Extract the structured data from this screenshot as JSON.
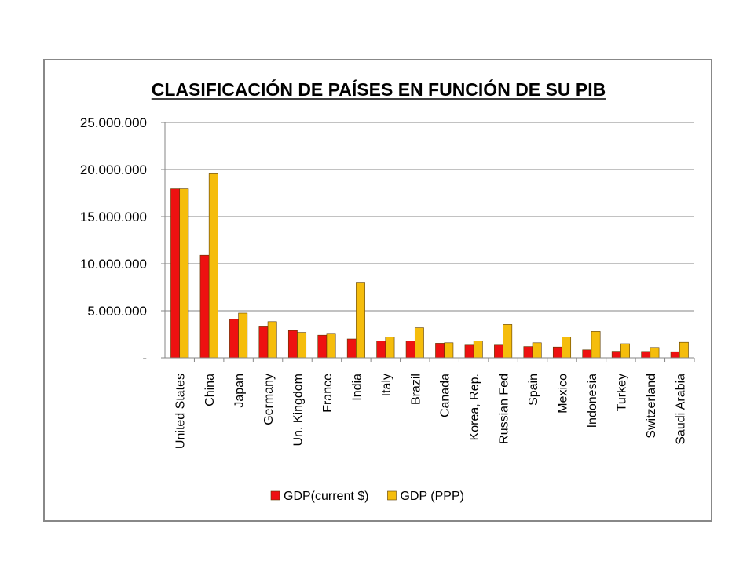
{
  "chart_data": {
    "type": "bar",
    "title": "CLASIFICACIÓN DE PAÍSES EN FUNCIÓN DE SU PIB",
    "xlabel": "",
    "ylabel": "",
    "ylim": [
      0,
      25000000
    ],
    "yticks": [
      0,
      5000000,
      10000000,
      15000000,
      20000000,
      25000000
    ],
    "ytick_labels": [
      "-",
      "5.000.000",
      "10.000.000",
      "15.000.000",
      "20.000.000",
      "25.000.000"
    ],
    "grid": true,
    "legend_position": "bottom",
    "categories": [
      "United States",
      "China",
      "Japan",
      "Germany",
      "Un. Kingdom",
      "France",
      "India",
      "Italy",
      "Brazil",
      "Canada",
      "Korea, Rep.",
      "Russian Fed",
      "Spain",
      "Mexico",
      "Indonesia",
      "Turkey",
      "Switzerland",
      "Saudi Arabia"
    ],
    "series": [
      {
        "name": "GDP(current $)",
        "color": "#ee1111",
        "values": [
          17950000,
          10900000,
          4100000,
          3300000,
          2900000,
          2400000,
          2000000,
          1800000,
          1800000,
          1550000,
          1350000,
          1350000,
          1200000,
          1150000,
          850000,
          700000,
          680000,
          650000
        ]
      },
      {
        "name": "GDP (PPP)",
        "color": "#f5bd0c",
        "values": [
          17950000,
          19550000,
          4750000,
          3850000,
          2700000,
          2600000,
          7950000,
          2200000,
          3200000,
          1600000,
          1800000,
          3550000,
          1600000,
          2200000,
          2800000,
          1500000,
          1100000,
          1650000
        ]
      }
    ]
  }
}
